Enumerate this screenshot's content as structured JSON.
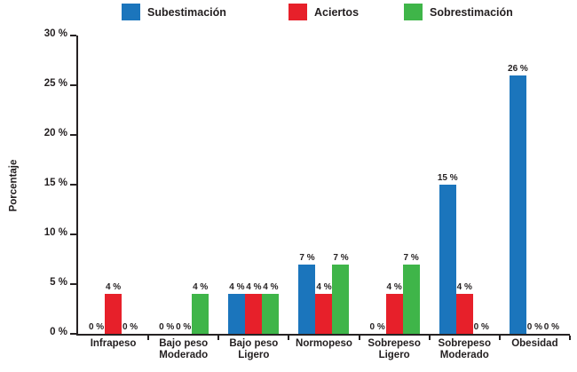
{
  "legend": [
    {
      "label": "Subestimación",
      "color": "#1B75BC"
    },
    {
      "label": "Aciertos",
      "color": "#E7202A"
    },
    {
      "label": "Sobrestimación",
      "color": "#3FB549"
    }
  ],
  "axis": {
    "y_title": "Porcentaje",
    "ytick_labels": [
      "0 %",
      "5 %",
      "10 %",
      "15 %",
      "20 %",
      "25 %",
      "30 %"
    ]
  },
  "chart_data": {
    "type": "bar",
    "title": "",
    "xlabel": "",
    "ylabel": "Porcentaje",
    "ylim": [
      0,
      30
    ],
    "yticks": [
      0,
      5,
      10,
      15,
      20,
      25,
      30
    ],
    "grid": false,
    "legend_position": "top",
    "categories": [
      "Infrapeso",
      "Bajo peso Moderado",
      "Bajo peso Ligero",
      "Normopeso",
      "Sobrepeso Ligero",
      "Sobrepeso Moderado",
      "Obesidad"
    ],
    "category_display_lines": [
      "Infrapeso",
      "Bajo peso\nModerado",
      "Bajo peso\nLigero",
      "Normopeso",
      "Sobrepeso\nLigero",
      "Sobrepeso\nModerado",
      "Obesidad"
    ],
    "series": [
      {
        "name": "Subestimación",
        "color": "#1B75BC",
        "values": [
          0,
          0,
          4,
          7,
          0,
          15,
          26
        ],
        "labels": [
          "0 %",
          "0 %",
          "4 %",
          "7 %",
          "0 %",
          "15 %",
          "26 %"
        ]
      },
      {
        "name": "Aciertos",
        "color": "#E7202A",
        "values": [
          4,
          0,
          4,
          4,
          4,
          4,
          0
        ],
        "labels": [
          "4 %",
          "0 %",
          "4 %",
          "4 %",
          "4 %",
          "4 %",
          "0 %"
        ]
      },
      {
        "name": "Sobrestimación",
        "color": "#3FB549",
        "values": [
          0,
          4,
          4,
          7,
          7,
          0,
          0
        ],
        "labels": [
          "0 %",
          "4 %",
          "4 %",
          "7 %",
          "7 %",
          "0 %",
          "0 %"
        ]
      }
    ]
  }
}
